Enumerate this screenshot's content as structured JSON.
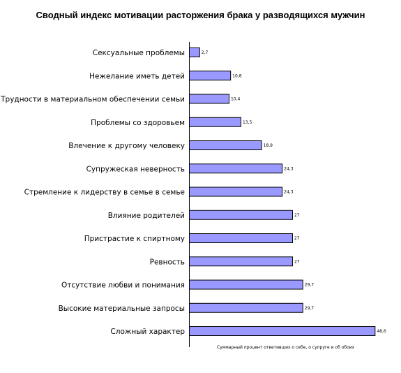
{
  "chart_data": {
    "type": "bar",
    "orientation": "horizontal",
    "title": "Сводный индекс мотивации расторжения брака у разводящихся мужчин",
    "categories": [
      "Сексуальные проблемы",
      "Нежелание иметь детей",
      "Трудности в материальном обеспечении семьи",
      "Проблемы со здоровьем",
      "Влечение к другому человеку",
      "Супружеская неверность",
      "Стремление к лидерству в семье в семье",
      "Влияние родителей",
      "Пристрастие к спиртному",
      "Ревность",
      "Отсутствие любви и понимания",
      "Высокие материальные запросы",
      "Сложный  характер"
    ],
    "series": [
      {
        "values": [
          2.7,
          10.8,
          10.4,
          13.5,
          18.9,
          24.3,
          24.3,
          27,
          27,
          27,
          29.7,
          29.7,
          48.6
        ],
        "labels": [
          "2,7",
          "10,8",
          "10,4",
          "13,5",
          "18,9",
          "24,3",
          "24,3",
          "27",
          "27",
          "27",
          "29,7",
          "29,7",
          "48,6"
        ],
        "color": "#9999ff"
      }
    ],
    "xlim": [
      0,
      50
    ],
    "note": "Суммарный процент ответивших о себе, о супруге и об обоих",
    "grid": false,
    "legend": "none",
    "bar_color": "#9999ff"
  }
}
